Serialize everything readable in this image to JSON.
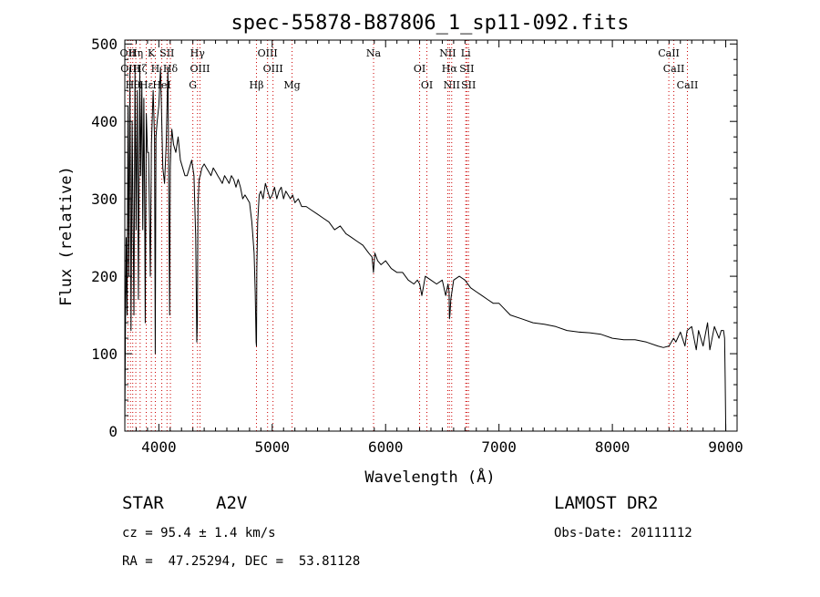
{
  "chart_data": {
    "type": "line",
    "title": "spec-55878-B87806_1_sp11-092.fits",
    "xlabel": "Wavelength (Å)",
    "ylabel": "Flux (relative)",
    "xlim": [
      3700,
      9100
    ],
    "ylim": [
      0,
      505
    ],
    "x_ticks": [
      4000,
      5000,
      6000,
      7000,
      8000,
      9000
    ],
    "y_ticks": [
      0,
      100,
      200,
      300,
      400,
      500
    ],
    "line_color": "#000000",
    "marker_color": "#cc0000",
    "series": [
      {
        "x": [
          3700,
          3705,
          3712,
          3720,
          3728,
          3735,
          3745,
          3755,
          3765,
          3780,
          3790,
          3800,
          3810,
          3820,
          3832,
          3840,
          3850,
          3858,
          3868,
          3875,
          3880,
          3890,
          3900,
          3910,
          3925,
          3935,
          3950,
          3962,
          3968,
          3975,
          3985,
          4000,
          4015,
          4035,
          4050,
          4065,
          4080,
          4095,
          4101,
          4105,
          4115,
          4130,
          4150,
          4170,
          4190,
          4210,
          4230,
          4250,
          4270,
          4290,
          4310,
          4325,
          4335,
          4340,
          4345,
          4355,
          4365,
          4380,
          4400,
          4420,
          4440,
          4460,
          4480,
          4500,
          4520,
          4540,
          4560,
          4580,
          4600,
          4620,
          4640,
          4660,
          4680,
          4700,
          4720,
          4740,
          4760,
          4780,
          4800,
          4820,
          4840,
          4850,
          4858,
          4861,
          4864,
          4872,
          4885,
          4900,
          4920,
          4940,
          4960,
          4980,
          5000,
          5020,
          5040,
          5060,
          5080,
          5100,
          5120,
          5140,
          5160,
          5180,
          5200,
          5230,
          5260,
          5300,
          5350,
          5400,
          5450,
          5500,
          5550,
          5600,
          5650,
          5700,
          5750,
          5800,
          5850,
          5880,
          5893,
          5905,
          5930,
          5960,
          6000,
          6050,
          6100,
          6150,
          6200,
          6250,
          6280,
          6300,
          6320,
          6350,
          6400,
          6450,
          6500,
          6530,
          6550,
          6560,
          6563,
          6567,
          6575,
          6600,
          6650,
          6700,
          6750,
          6800,
          6850,
          6900,
          6950,
          7000,
          7100,
          7200,
          7300,
          7400,
          7500,
          7600,
          7700,
          7800,
          7900,
          8000,
          8100,
          8200,
          8300,
          8400,
          8450,
          8500,
          8540,
          8560,
          8600,
          8640,
          8660,
          8700,
          8740,
          8760,
          8800,
          8840,
          8860,
          8900,
          8940,
          8960,
          8980,
          8990,
          8995,
          9000
        ],
        "y": [
          5,
          120,
          250,
          150,
          420,
          200,
          470,
          130,
          400,
          150,
          470,
          260,
          440,
          170,
          470,
          330,
          450,
          260,
          430,
          290,
          140,
          410,
          360,
          360,
          200,
          370,
          440,
          380,
          100,
          380,
          400,
          420,
          470,
          340,
          320,
          370,
          470,
          150,
          340,
          360,
          390,
          370,
          360,
          380,
          350,
          340,
          330,
          330,
          340,
          350,
          330,
          250,
          115,
          140,
          290,
          325,
          330,
          340,
          345,
          340,
          335,
          330,
          340,
          335,
          330,
          325,
          320,
          330,
          325,
          320,
          330,
          325,
          315,
          325,
          315,
          300,
          305,
          300,
          295,
          270,
          230,
          180,
          115,
          110,
          210,
          270,
          305,
          310,
          300,
          320,
          310,
          300,
          305,
          315,
          300,
          310,
          315,
          300,
          310,
          305,
          300,
          305,
          295,
          300,
          290,
          290,
          285,
          280,
          275,
          270,
          260,
          265,
          255,
          250,
          245,
          240,
          230,
          225,
          205,
          230,
          220,
          215,
          220,
          210,
          205,
          205,
          195,
          190,
          195,
          190,
          175,
          200,
          195,
          190,
          195,
          175,
          190,
          180,
          145,
          150,
          170,
          195,
          200,
          195,
          185,
          180,
          175,
          170,
          165,
          165,
          150,
          145,
          140,
          138,
          135,
          130,
          128,
          127,
          125,
          120,
          118,
          118,
          115,
          110,
          108,
          110,
          120,
          115,
          128,
          110,
          130,
          135,
          105,
          130,
          110,
          140,
          105,
          135,
          120,
          130,
          130,
          120,
          70,
          0
        ]
      }
    ],
    "spectral_lines": [
      {
        "x": 3727,
        "label": "OII"
      },
      {
        "x": 3750,
        "label": "OIII"
      },
      {
        "x": 3770,
        "label": "Hθ"
      },
      {
        "x": 3797,
        "label": "Hη"
      },
      {
        "x": 3835,
        "label": "Hζ"
      },
      {
        "x": 3889,
        "label": "Hε"
      },
      {
        "x": 3934,
        "label": "K"
      },
      {
        "x": 3969,
        "label": "H"
      },
      {
        "x": 4026,
        "label": "HeI"
      },
      {
        "x": 4072,
        "label": "SII"
      },
      {
        "x": 4102,
        "label": "Hδ"
      },
      {
        "x": 4300,
        "label": "G"
      },
      {
        "x": 4341,
        "label": "Hγ"
      },
      {
        "x": 4363,
        "label": "OIII"
      },
      {
        "x": 4861,
        "label": "Hβ"
      },
      {
        "x": 4959,
        "label": "OIII"
      },
      {
        "x": 5007,
        "label": "OIII"
      },
      {
        "x": 5175,
        "label": "Mg"
      },
      {
        "x": 5894,
        "label": "Na"
      },
      {
        "x": 6300,
        "label": "OI"
      },
      {
        "x": 6364,
        "label": "OI"
      },
      {
        "x": 6548,
        "label": "NII"
      },
      {
        "x": 6563,
        "label": "Hα"
      },
      {
        "x": 6583,
        "label": "NII"
      },
      {
        "x": 6707,
        "label": "Li"
      },
      {
        "x": 6716,
        "label": "SII"
      },
      {
        "x": 6731,
        "label": "SII"
      },
      {
        "x": 8498,
        "label": "CaII"
      },
      {
        "x": 8542,
        "label": "CaII"
      },
      {
        "x": 8662,
        "label": "CaII"
      }
    ]
  },
  "info": {
    "object_class": "STAR",
    "subclass": "A2V",
    "survey": "LAMOST DR2",
    "cz": "cz = 95.4 ± 1.4 km/s",
    "obs_date": "Obs-Date: 20111112",
    "coords": "RA =  47.25294, DEC =  53.81128"
  }
}
